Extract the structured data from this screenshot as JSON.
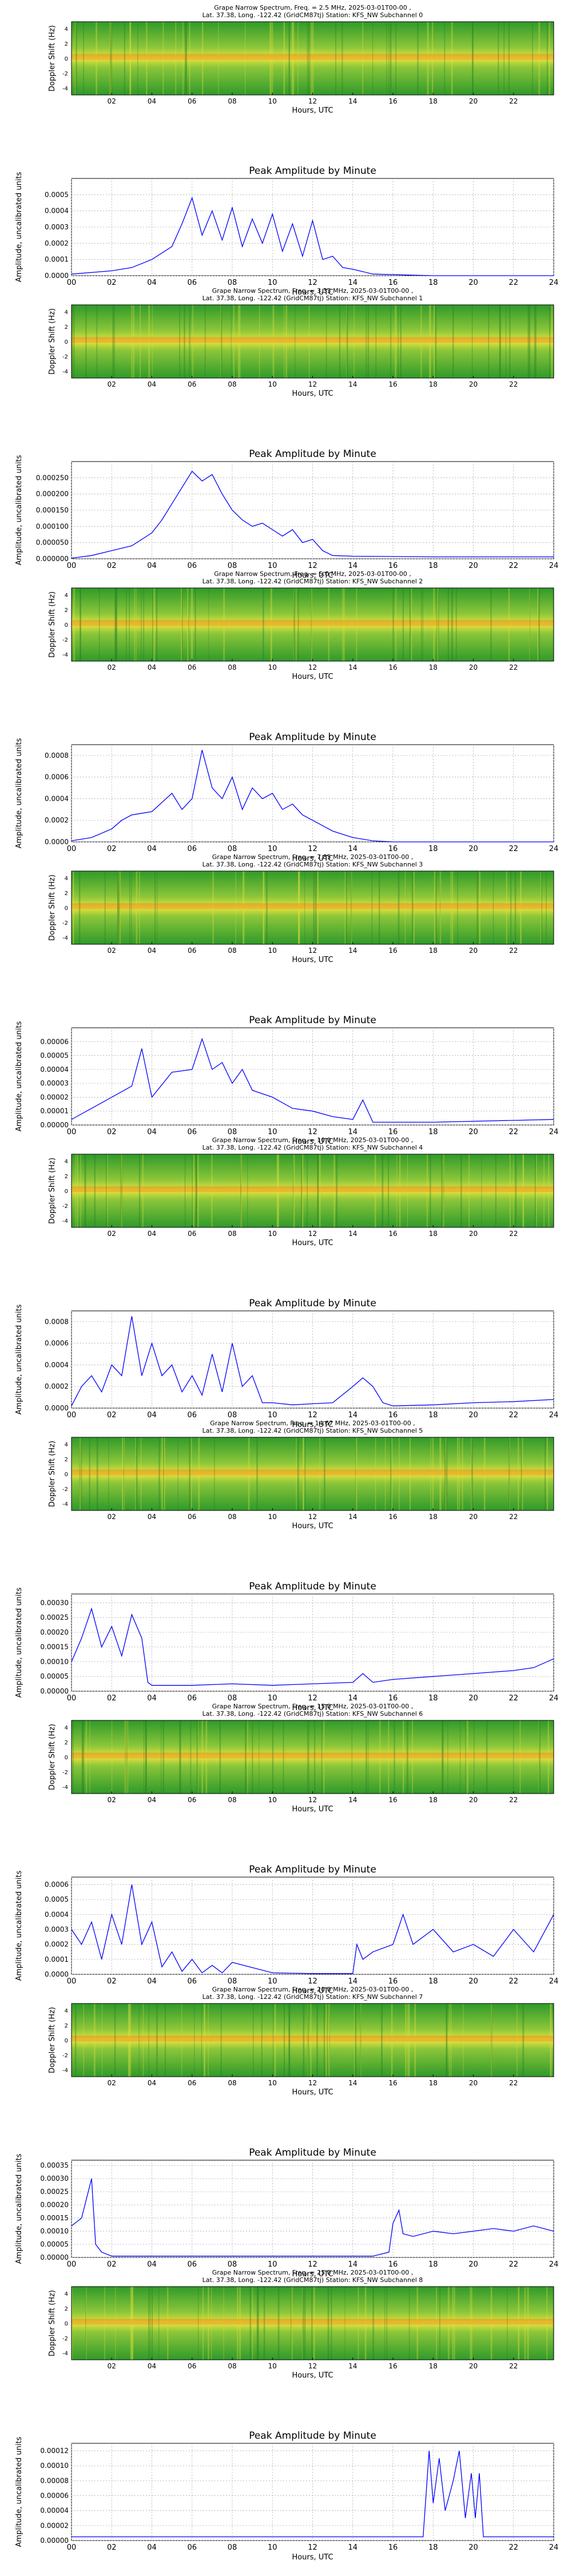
{
  "specX": {
    "ticks": [
      "02",
      "04",
      "06",
      "08",
      "10",
      "12",
      "14",
      "16",
      "18",
      "20",
      "22"
    ],
    "xlabel": "Hours, UTC"
  },
  "specY": {
    "ticks": [
      "4",
      "2",
      "0",
      "-2",
      "-4"
    ],
    "ylabel": "Doppler Shift (Hz)"
  },
  "colors": {
    "trace": "#0000ff",
    "specLow": "#1f8f1f",
    "specHigh": "#ff4000",
    "grid": "#aaaaaa"
  },
  "panels": [
    {
      "spectrogram": {
        "title1": "Grape Narrow Spectrum, Freq. = 2.5 MHz, 2025-03-01T00-00 ,",
        "title2": "Lat.  37.38, Long. -122.42 (GridCM87tj) Station: KFS_NW Subchannel 0"
      },
      "chart_data": {
        "type": "line",
        "title": "Peak Amplitude by Minute",
        "xlabel": "Hours, UTC",
        "ylabel": "Amplitude, uncalibrated units",
        "xlim": [
          0,
          24
        ],
        "ylim": [
          0,
          0.0006
        ],
        "yticks": [
          "0.0000",
          "0.0001",
          "0.0002",
          "0.0003",
          "0.0004",
          "0.0005"
        ],
        "xticks": [
          "00",
          "02",
          "04",
          "06",
          "08",
          "10",
          "12",
          "14",
          "16",
          "18",
          "20",
          "22",
          "24"
        ],
        "series": [
          {
            "x": [
              0,
              2,
              3,
              4,
              5,
              5.5,
              6,
              6.5,
              7,
              7.5,
              8,
              8.5,
              9,
              9.5,
              10,
              10.5,
              11,
              11.5,
              12,
              12.5,
              13,
              13.5,
              14,
              15,
              18,
              24
            ],
            "y": [
              1e-05,
              3e-05,
              5e-05,
              0.0001,
              0.00018,
              0.00032,
              0.00048,
              0.00025,
              0.0004,
              0.00022,
              0.00042,
              0.00018,
              0.00035,
              0.0002,
              0.00038,
              0.00015,
              0.00032,
              0.00012,
              0.00034,
              0.0001,
              0.00012,
              5e-05,
              4e-05,
              1e-05,
              0.0,
              0.0
            ]
          }
        ]
      }
    },
    {
      "spectrogram": {
        "title1": "Grape Narrow Spectrum, Freq. = 3.33 MHz, 2025-03-01T00-00 ,",
        "title2": "Lat.  37.38, Long. -122.42 (GridCM87tj) Station: KFS_NW Subchannel 1"
      },
      "chart_data": {
        "type": "line",
        "title": "Peak Amplitude by Minute",
        "xlabel": "Hours, UTC",
        "ylabel": "Amplitude, uncalibrated units",
        "xlim": [
          0,
          24
        ],
        "ylim": [
          0,
          0.0003
        ],
        "yticks": [
          "0.000000",
          "0.000050",
          "0.000100",
          "0.000150",
          "0.000200",
          "0.000250"
        ],
        "xticks": [
          "00",
          "02",
          "04",
          "06",
          "08",
          "10",
          "12",
          "14",
          "16",
          "18",
          "20",
          "22",
          "24"
        ],
        "series": [
          {
            "x": [
              0,
              1,
              2,
              3,
              4,
              4.5,
              5,
              5.5,
              6,
              6.5,
              7,
              7.5,
              8,
              8.5,
              9,
              9.5,
              10,
              10.5,
              11,
              11.5,
              12,
              12.5,
              13,
              14,
              18,
              24
            ],
            "y": [
              2e-06,
              1e-05,
              2.5e-05,
              4e-05,
              8e-05,
              0.00012,
              0.00017,
              0.00022,
              0.00027,
              0.00024,
              0.00026,
              0.0002,
              0.00015,
              0.00012,
              0.0001,
              0.00011,
              9e-05,
              7e-05,
              9e-05,
              5e-05,
              6e-05,
              2.5e-05,
              1e-05,
              8e-06,
              6e-06,
              6e-06
            ]
          }
        ]
      }
    },
    {
      "spectrogram": {
        "title1": "Grape Narrow Spectrum, Freq. = 5.0 MHz, 2025-03-01T00-00 ,",
        "title2": "Lat.  37.38, Long. -122.42 (GridCM87tj) Station: KFS_NW Subchannel 2"
      },
      "chart_data": {
        "type": "line",
        "title": "Peak Amplitude by Minute",
        "xlabel": "Hours, UTC",
        "ylabel": "Amplitude, uncalibrated units",
        "xlim": [
          0,
          24
        ],
        "ylim": [
          0,
          0.0009
        ],
        "yticks": [
          "0.0000",
          "0.0002",
          "0.0004",
          "0.0006",
          "0.0008"
        ],
        "xticks": [
          "00",
          "02",
          "04",
          "06",
          "08",
          "10",
          "12",
          "14",
          "16",
          "18",
          "20",
          "22",
          "24"
        ],
        "series": [
          {
            "x": [
              0,
              1,
              2,
              2.5,
              3,
              4,
              5,
              5.5,
              6,
              6.5,
              7,
              7.5,
              8,
              8.5,
              9,
              9.5,
              10,
              10.5,
              11,
              11.5,
              12,
              12.5,
              13,
              14,
              15,
              16,
              24
            ],
            "y": [
              1e-05,
              4e-05,
              0.00012,
              0.0002,
              0.00025,
              0.00028,
              0.00045,
              0.0003,
              0.0004,
              0.00085,
              0.0005,
              0.0004,
              0.0006,
              0.0003,
              0.0005,
              0.0004,
              0.00045,
              0.0003,
              0.00035,
              0.00025,
              0.0002,
              0.00015,
              0.0001,
              4e-05,
              1e-05,
              0.0,
              0.0
            ]
          }
        ]
      }
    },
    {
      "spectrogram": {
        "title1": "Grape Narrow Spectrum, Freq. = 7.85 MHz, 2025-03-01T00-00 ,",
        "title2": "Lat.  37.38, Long. -122.42 (GridCM87tj) Station: KFS_NW Subchannel 3"
      },
      "chart_data": {
        "type": "line",
        "title": "Peak Amplitude by Minute",
        "xlabel": "Hours, UTC",
        "ylabel": "Amplitude, uncalibrated units",
        "xlim": [
          0,
          24
        ],
        "ylim": [
          0,
          7e-05
        ],
        "yticks": [
          "0.00000",
          "0.00001",
          "0.00002",
          "0.00003",
          "0.00004",
          "0.00005",
          "0.00006"
        ],
        "xticks": [
          "00",
          "02",
          "04",
          "06",
          "08",
          "10",
          "12",
          "14",
          "16",
          "18",
          "20",
          "22",
          "24"
        ],
        "series": [
          {
            "x": [
              0,
              1,
              2,
              3,
              3.5,
              4,
              5,
              6,
              6.5,
              7,
              7.5,
              8,
              8.5,
              9,
              10,
              11,
              12,
              13,
              14,
              14.5,
              15,
              18,
              24
            ],
            "y": [
              4e-06,
              1.2e-05,
              2e-05,
              2.8e-05,
              5.5e-05,
              2e-05,
              3.8e-05,
              4e-05,
              6.2e-05,
              4e-05,
              4.5e-05,
              3e-05,
              4e-05,
              2.5e-05,
              2e-05,
              1.2e-05,
              1e-05,
              6e-06,
              4e-06,
              1.8e-05,
              2e-06,
              2e-06,
              4e-06
            ]
          }
        ]
      }
    },
    {
      "spectrogram": {
        "title1": "Grape Narrow Spectrum, Freq. = 10.0 MHz, 2025-03-01T00-00 ,",
        "title2": "Lat.  37.38, Long. -122.42 (GridCM87tj) Station: KFS_NW Subchannel 4"
      },
      "chart_data": {
        "type": "line",
        "title": "Peak Amplitude by Minute",
        "xlabel": "Hours, UTC",
        "ylabel": "Amplitude, uncalibrated units",
        "xlim": [
          0,
          24
        ],
        "ylim": [
          0,
          0.0009
        ],
        "yticks": [
          "0.0000",
          "0.0002",
          "0.0004",
          "0.0006",
          "0.0008"
        ],
        "xticks": [
          "00",
          "02",
          "04",
          "06",
          "08",
          "10",
          "12",
          "14",
          "16",
          "18",
          "20",
          "22",
          "24"
        ],
        "series": [
          {
            "x": [
              0,
              0.5,
              1,
              1.5,
              2,
              2.5,
              3,
              3.5,
              4,
              4.5,
              5,
              5.5,
              6,
              6.5,
              7,
              7.5,
              8,
              8.5,
              9,
              9.5,
              10,
              11,
              12,
              13,
              14,
              14.5,
              15,
              15.5,
              16,
              18,
              20,
              22,
              24
            ],
            "y": [
              2e-05,
              0.0002,
              0.0003,
              0.00015,
              0.0004,
              0.0003,
              0.00085,
              0.0003,
              0.0006,
              0.0003,
              0.0004,
              0.00015,
              0.0003,
              0.00012,
              0.0005,
              0.00015,
              0.0006,
              0.0002,
              0.0003,
              5e-05,
              5e-05,
              3e-05,
              4e-05,
              5e-05,
              0.0002,
              0.00028,
              0.0002,
              5e-05,
              2e-05,
              3e-05,
              5e-05,
              6e-05,
              8e-05
            ]
          }
        ]
      }
    },
    {
      "spectrogram": {
        "title1": "Grape Narrow Spectrum, Freq. = 14.67 MHz, 2025-03-01T00-00 ,",
        "title2": "Lat.  37.38, Long. -122.42 (GridCM87tj) Station: KFS_NW Subchannel 5"
      },
      "chart_data": {
        "type": "line",
        "title": "Peak Amplitude by Minute",
        "xlabel": "Hours, UTC",
        "ylabel": "Amplitude, uncalibrated units",
        "xlim": [
          0,
          24
        ],
        "ylim": [
          0,
          0.00033
        ],
        "yticks": [
          "0.00000",
          "0.00005",
          "0.00010",
          "0.00015",
          "0.00020",
          "0.00025",
          "0.00030"
        ],
        "xticks": [
          "00",
          "02",
          "04",
          "06",
          "08",
          "10",
          "12",
          "14",
          "16",
          "18",
          "20",
          "22",
          "24"
        ],
        "series": [
          {
            "x": [
              0,
              0.5,
              1,
              1.5,
              2,
              2.5,
              3,
              3.5,
              3.8,
              4,
              6,
              8,
              10,
              12,
              14,
              14.5,
              15,
              16,
              18,
              20,
              22,
              23,
              24
            ],
            "y": [
              0.0001,
              0.00018,
              0.00028,
              0.00015,
              0.00022,
              0.00012,
              0.00026,
              0.00018,
              3e-05,
              2e-05,
              2e-05,
              2.5e-05,
              2e-05,
              2.5e-05,
              3e-05,
              6e-05,
              3e-05,
              4e-05,
              5e-05,
              6e-05,
              7e-05,
              8e-05,
              0.00011
            ]
          }
        ]
      }
    },
    {
      "spectrogram": {
        "title1": "Grape Narrow Spectrum, Freq. = 15.0 MHz, 2025-03-01T00-00 ,",
        "title2": "Lat.  37.38, Long. -122.42 (GridCM87tj) Station: KFS_NW Subchannel 6"
      },
      "chart_data": {
        "type": "line",
        "title": "Peak Amplitude by Minute",
        "xlabel": "Hours, UTC",
        "ylabel": "Amplitude, uncalibrated units",
        "xlim": [
          0,
          24
        ],
        "ylim": [
          0,
          0.00065
        ],
        "yticks": [
          "0.0000",
          "0.0001",
          "0.0002",
          "0.0003",
          "0.0004",
          "0.0005",
          "0.0006"
        ],
        "xticks": [
          "00",
          "02",
          "04",
          "06",
          "08",
          "10",
          "12",
          "14",
          "16",
          "18",
          "20",
          "22",
          "24"
        ],
        "series": [
          {
            "x": [
              0,
              0.5,
              1,
              1.5,
              2,
              2.5,
              3,
              3.5,
              4,
              4.5,
              5,
              5.5,
              6,
              6.5,
              7,
              7.5,
              8,
              10,
              12,
              14,
              14.2,
              14.5,
              15,
              16,
              16.5,
              17,
              18,
              19,
              20,
              21,
              22,
              23,
              24
            ],
            "y": [
              0.0003,
              0.0002,
              0.00035,
              0.0001,
              0.0004,
              0.0002,
              0.0006,
              0.0002,
              0.00035,
              5e-05,
              0.00015,
              2e-05,
              0.0001,
              1e-05,
              6e-05,
              1e-05,
              8e-05,
              1e-05,
              5e-06,
              5e-06,
              0.0002,
              0.0001,
              0.00015,
              0.0002,
              0.0004,
              0.0002,
              0.0003,
              0.00015,
              0.0002,
              0.00012,
              0.0003,
              0.00015,
              0.0004
            ]
          }
        ]
      }
    },
    {
      "spectrogram": {
        "title1": "Grape Narrow Spectrum, Freq. = 20.0 MHz, 2025-03-01T00-00 ,",
        "title2": "Lat.  37.38, Long. -122.42 (GridCM87tj) Station: KFS_NW Subchannel 7"
      },
      "chart_data": {
        "type": "line",
        "title": "Peak Amplitude by Minute",
        "xlabel": "Hours, UTC",
        "ylabel": "Amplitude, uncalibrated units",
        "xlim": [
          0,
          24
        ],
        "ylim": [
          0,
          0.00037
        ],
        "yticks": [
          "0.00000",
          "0.00005",
          "0.00010",
          "0.00015",
          "0.00020",
          "0.00025",
          "0.00030",
          "0.00035"
        ],
        "xticks": [
          "00",
          "02",
          "04",
          "06",
          "08",
          "10",
          "12",
          "14",
          "16",
          "18",
          "20",
          "22",
          "24"
        ],
        "series": [
          {
            "x": [
              0,
              0.5,
              1,
              1.2,
              1.5,
              2,
              4,
              8,
              12,
              15,
              15.8,
              16,
              16.3,
              16.5,
              17,
              18,
              19,
              20,
              21,
              22,
              23,
              24
            ],
            "y": [
              0.00012,
              0.00015,
              0.0003,
              5e-05,
              2e-05,
              5e-06,
              5e-06,
              5e-06,
              5e-06,
              5e-06,
              2e-05,
              0.00013,
              0.00018,
              9e-05,
              8e-05,
              0.0001,
              9e-05,
              0.0001,
              0.00011,
              0.0001,
              0.00012,
              0.0001
            ]
          }
        ]
      }
    },
    {
      "spectrogram": {
        "title1": "Grape Narrow Spectrum, Freq. = 25.0 MHz, 2025-03-01T00-00 ,",
        "title2": "Lat.  37.38, Long. -122.42 (GridCM87tj) Station: KFS_NW Subchannel 8"
      },
      "chart_data": {
        "type": "line",
        "title": "Peak Amplitude by Minute",
        "xlabel": "Hours, UTC",
        "ylabel": "Amplitude, uncalibrated units",
        "xlim": [
          0,
          24
        ],
        "ylim": [
          0,
          0.00013
        ],
        "yticks": [
          "0.00000",
          "0.00002",
          "0.00004",
          "0.00006",
          "0.00008",
          "0.00010",
          "0.00012"
        ],
        "xticks": [
          "00",
          "02",
          "04",
          "06",
          "08",
          "10",
          "12",
          "14",
          "16",
          "18",
          "20",
          "22",
          "24"
        ],
        "series": [
          {
            "x": [
              0,
              4,
              8,
              12,
              16,
              17.5,
              17.8,
              18,
              18.3,
              18.6,
              19,
              19.3,
              19.6,
              19.9,
              20.1,
              20.3,
              20.5,
              21,
              24
            ],
            "y": [
              5e-06,
              5e-06,
              5e-06,
              5e-06,
              5e-06,
              5e-06,
              0.00012,
              5e-05,
              0.00011,
              4e-05,
              8e-05,
              0.00012,
              3e-05,
              9e-05,
              3e-05,
              9e-05,
              5e-06,
              5e-06,
              5e-06
            ]
          }
        ]
      }
    }
  ]
}
